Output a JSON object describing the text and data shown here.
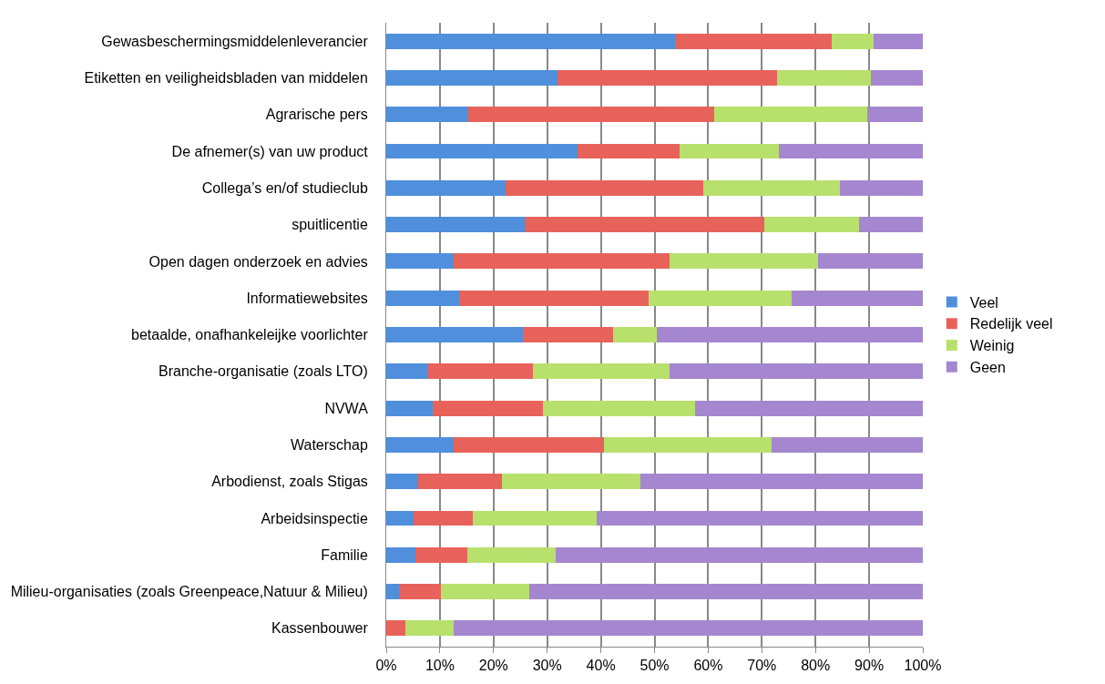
{
  "chart_data": {
    "type": "bar",
    "orientation": "horizontal",
    "stacked": true,
    "categories": [
      "Gewasbeschermingsmiddelenleverancier",
      "Etiketten en veiligheidsbladen van middelen",
      "Agrarische pers",
      "De afnemer(s) van uw product",
      "Collega’s en/of studieclub",
      "spuitlicentie",
      "Open dagen onderzoek en advies",
      "Informatiewebsites",
      "betaalde, onafhankeleijke voorlichter",
      "Branche-organisatie (zoals LTO)",
      "NVWA",
      "Waterschap",
      "Arbodienst, zoals Stigas",
      "Arbeidsinspectie",
      "Familie",
      "Milieu-organisaties (zoals Greenpeace,Natuur & Milieu)",
      "Kassenbouwer"
    ],
    "series": [
      {
        "name": "Veel",
        "color": "#4f8fdc",
        "values": [
          53.8,
          31.9,
          15.3,
          35.6,
          22.3,
          25.8,
          12.5,
          13.5,
          25.4,
          7.8,
          8.6,
          12.5,
          5.9,
          5.1,
          5.5,
          2.3,
          0
        ]
      },
      {
        "name": "Redelijk veel",
        "color": "#e8625c",
        "values": [
          29.2,
          40.9,
          45.8,
          19.0,
          36.8,
          44.7,
          40.3,
          35.4,
          16.9,
          19.6,
          20.6,
          28.0,
          15.6,
          11.1,
          9.6,
          7.9,
          3.5
        ]
      },
      {
        "name": "Weinig",
        "color": "#b8e06c",
        "values": [
          7.8,
          17.6,
          28.5,
          18.6,
          25.4,
          17.6,
          27.6,
          26.6,
          8.2,
          25.4,
          28.3,
          31.3,
          25.9,
          23.1,
          16.4,
          16.4,
          9.0
        ]
      },
      {
        "name": "Geen",
        "color": "#a587cf",
        "values": [
          9.2,
          9.6,
          10.4,
          26.8,
          15.5,
          11.9,
          19.6,
          24.5,
          49.5,
          47.2,
          42.5,
          28.2,
          52.6,
          60.7,
          68.5,
          73.4,
          87.5
        ]
      }
    ],
    "xlim": [
      0,
      100
    ],
    "xticks": [
      {
        "value": 0,
        "label": "0%"
      },
      {
        "value": 10,
        "label": "10%"
      },
      {
        "value": 20,
        "label": "20%"
      },
      {
        "value": 30,
        "label": "30%"
      },
      {
        "value": 40,
        "label": "40%"
      },
      {
        "value": 50,
        "label": "50%"
      },
      {
        "value": 60,
        "label": "60%"
      },
      {
        "value": 70,
        "label": "70%"
      },
      {
        "value": 80,
        "label": "80%"
      },
      {
        "value": 90,
        "label": "90%"
      },
      {
        "value": 100,
        "label": "100%"
      }
    ],
    "grid": "x",
    "legend": "right"
  }
}
